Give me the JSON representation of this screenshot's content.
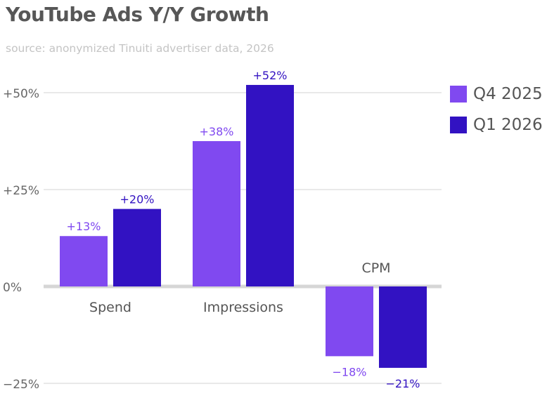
{
  "chart_data": {
    "type": "bar",
    "title": "YouTube Ads Y/Y Growth",
    "subtitle": "source: anonymized Tinuiti advertiser data, 2026",
    "categories": [
      "Spend",
      "Impressions",
      "CPM"
    ],
    "series": [
      {
        "name": "Q4 2025",
        "color": "#8049f0",
        "values": [
          13,
          37.5,
          -18
        ],
        "labels": [
          "+13%",
          "+38%",
          "−18%"
        ]
      },
      {
        "name": "Q1 2026",
        "color": "#3212c2",
        "values": [
          20,
          52,
          -21
        ],
        "labels": [
          "+20%",
          "+52%",
          "−21%"
        ]
      }
    ],
    "ylim": [
      -25,
      60
    ],
    "yticks": [
      {
        "value": 50,
        "label": "+50%"
      },
      {
        "value": 25,
        "label": "+25%"
      },
      {
        "value": 0,
        "label": "0%"
      },
      {
        "value": -25,
        "label": "−25%"
      }
    ],
    "grid": true,
    "legend_position": "right",
    "xlabel": "",
    "ylabel": ""
  }
}
